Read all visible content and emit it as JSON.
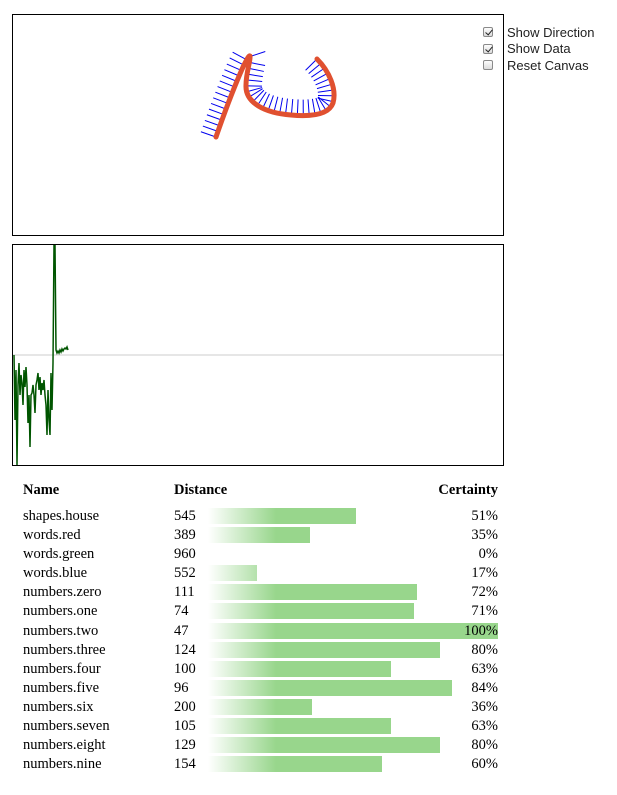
{
  "controls": [
    {
      "label": "Show Direction",
      "checked": true
    },
    {
      "label": "Show Data",
      "checked": true
    },
    {
      "label": "Reset Canvas",
      "checked": false
    }
  ],
  "table": {
    "headers": {
      "name": "Name",
      "distance": "Distance",
      "certainty": "Certainty"
    },
    "rows": [
      {
        "name": "shapes.house",
        "distance": "545",
        "certainty": "51%",
        "certainty_value": 0.51
      },
      {
        "name": "words.red",
        "distance": "389",
        "certainty": "35%",
        "certainty_value": 0.35
      },
      {
        "name": "words.green",
        "distance": "960",
        "certainty": "0%",
        "certainty_value": 0.0
      },
      {
        "name": "words.blue",
        "distance": "552",
        "certainty": "17%",
        "certainty_value": 0.17
      },
      {
        "name": "numbers.zero",
        "distance": "111",
        "certainty": "72%",
        "certainty_value": 0.72
      },
      {
        "name": "numbers.one",
        "distance": "74",
        "certainty": "71%",
        "certainty_value": 0.71
      },
      {
        "name": "numbers.two",
        "distance": "47",
        "certainty": "100%",
        "certainty_value": 1.0
      },
      {
        "name": "numbers.three",
        "distance": "124",
        "certainty": "80%",
        "certainty_value": 0.8
      },
      {
        "name": "numbers.four",
        "distance": "100",
        "certainty": "63%",
        "certainty_value": 0.63
      },
      {
        "name": "numbers.five",
        "distance": "96",
        "certainty": "84%",
        "certainty_value": 0.84
      },
      {
        "name": "numbers.six",
        "distance": "200",
        "certainty": "36%",
        "certainty_value": 0.36
      },
      {
        "name": "numbers.seven",
        "distance": "105",
        "certainty": "63%",
        "certainty_value": 0.63
      },
      {
        "name": "numbers.eight",
        "distance": "129",
        "certainty": "80%",
        "certainty_value": 0.8
      },
      {
        "name": "numbers.nine",
        "distance": "154",
        "certainty": "60%",
        "certainty_value": 0.6
      }
    ]
  },
  "colors": {
    "stroke": "#e05030",
    "direction_ticks": "#0000ee",
    "signal_line": "#005500",
    "baseline": "#cccccc",
    "bar_fill": "#98d68c"
  }
}
